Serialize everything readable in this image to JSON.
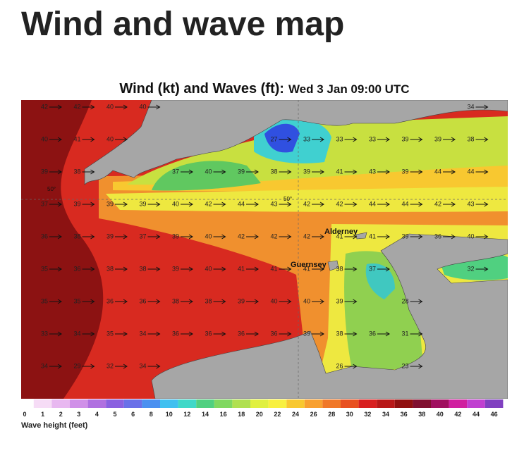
{
  "heading": "Wind and wave map",
  "map": {
    "title": "Wind (kt) and Waves (ft):",
    "time": "Wed 3 Jan 09:00 UTC",
    "places": [
      "Alderney",
      "Guernsey"
    ],
    "graticule_labels": [
      "50°",
      "50°"
    ],
    "wind_speeds": [
      [
        42,
        42,
        40,
        40,
        null,
        null,
        null,
        null,
        null,
        null,
        null,
        null,
        null,
        34
      ],
      [
        40,
        41,
        40,
        null,
        null,
        null,
        null,
        27,
        33,
        33,
        33,
        39,
        39,
        38
      ],
      [
        39,
        38,
        null,
        null,
        37,
        40,
        39,
        38,
        39,
        41,
        43,
        39,
        44,
        44
      ],
      [
        37,
        39,
        39,
        39,
        40,
        42,
        44,
        43,
        42,
        42,
        44,
        44,
        42,
        43
      ],
      [
        36,
        38,
        39,
        37,
        39,
        40,
        42,
        42,
        42,
        41,
        41,
        39,
        36,
        40
      ],
      [
        35,
        36,
        38,
        38,
        39,
        40,
        41,
        41,
        41,
        38,
        37,
        null,
        null,
        32
      ],
      [
        35,
        35,
        36,
        36,
        38,
        38,
        39,
        40,
        40,
        39,
        null,
        28,
        null,
        null
      ],
      [
        33,
        34,
        35,
        34,
        36,
        36,
        36,
        36,
        39,
        38,
        36,
        31,
        null,
        null
      ],
      [
        34,
        29,
        32,
        34,
        null,
        null,
        null,
        null,
        null,
        26,
        null,
        23,
        null,
        null
      ]
    ],
    "legend": {
      "label": "Wave height (feet)",
      "ticks": [
        0,
        1,
        2,
        3,
        4,
        5,
        6,
        8,
        10,
        12,
        14,
        16,
        18,
        20,
        22,
        24,
        26,
        28,
        30,
        32,
        34,
        36,
        38,
        40,
        42,
        44,
        46
      ],
      "colors": [
        "#f6dcf6",
        "#e8b8f0",
        "#d090e8",
        "#b070e0",
        "#8a60e0",
        "#6a70e8",
        "#4a90f0",
        "#40c0f0",
        "#40d8c8",
        "#50d080",
        "#80d860",
        "#b0e050",
        "#e0f040",
        "#f8f040",
        "#f8c830",
        "#f8a030",
        "#f07828",
        "#e85020",
        "#d82020",
        "#b81818",
        "#901010",
        "#801030",
        "#a01060",
        "#d020a0",
        "#c040d0",
        "#8040c0"
      ]
    }
  }
}
